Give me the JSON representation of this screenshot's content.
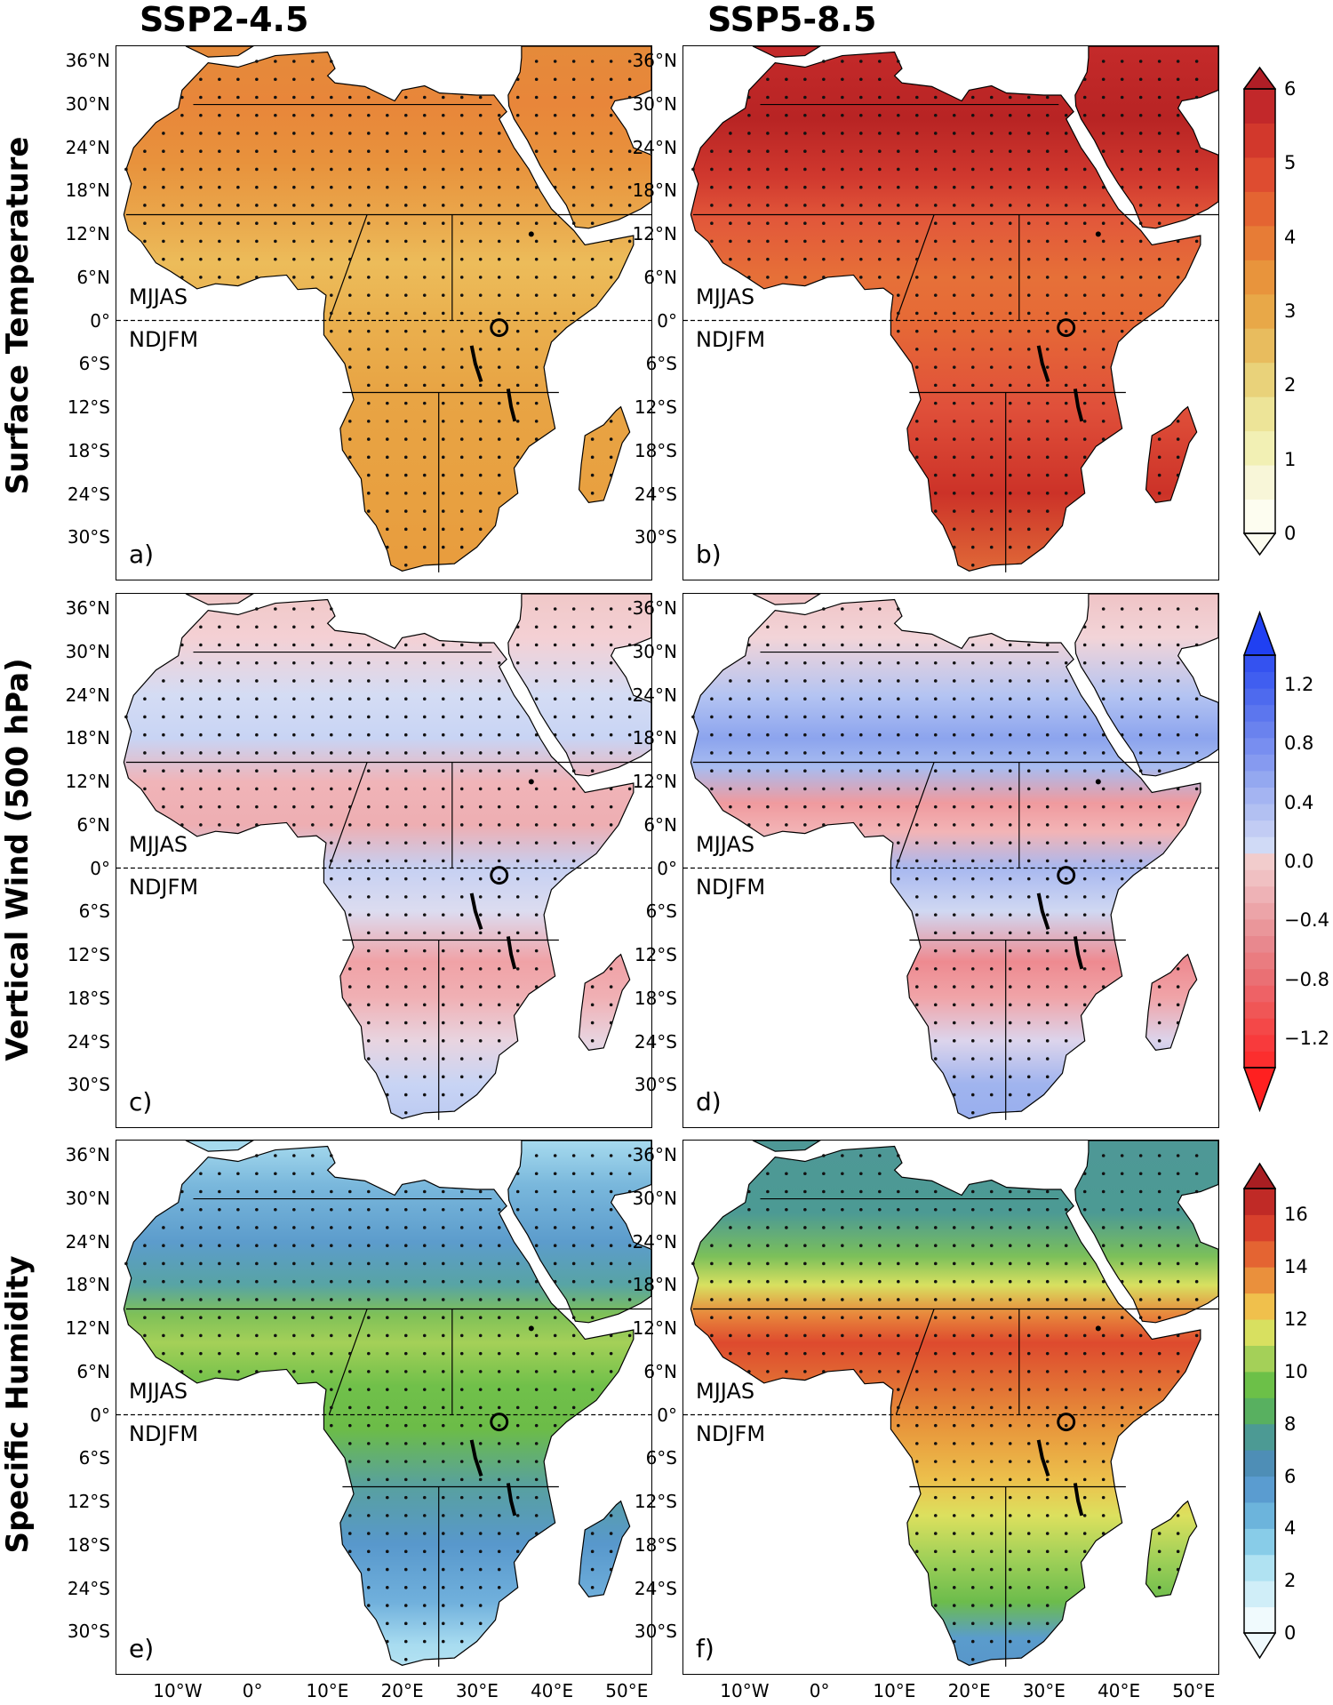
{
  "columns": [
    "SSP2-4.5",
    "SSP5-8.5"
  ],
  "rows": [
    "Surface Temperature",
    "Vertical Wind (500 hPa)",
    "Specific Humidity"
  ],
  "season_labels": {
    "north": "MJJAS",
    "south": "NDJFM"
  },
  "lat_ticks": [
    "36°N",
    "30°N",
    "24°N",
    "18°N",
    "12°N",
    "6°N",
    "0°",
    "6°S",
    "12°S",
    "18°S",
    "24°S",
    "30°S"
  ],
  "lat_values": [
    36,
    30,
    24,
    18,
    12,
    6,
    0,
    -6,
    -12,
    -18,
    -24,
    -30
  ],
  "lon_ticks": [
    "10°W",
    "0°",
    "10°E",
    "20°E",
    "30°E",
    "40°E",
    "50°E"
  ],
  "lon_values": [
    -10,
    0,
    10,
    20,
    30,
    40,
    50
  ],
  "panels": [
    {
      "letter": "a)",
      "row": 0,
      "col": 0,
      "fill_by_lat": [
        [
          38,
          "#e58a3a"
        ],
        [
          30,
          "#e8863a"
        ],
        [
          22,
          "#e8923c"
        ],
        [
          14,
          "#eaa84c"
        ],
        [
          8,
          "#ecbc5a"
        ],
        [
          0,
          "#eab04e"
        ],
        [
          -10,
          "#e8a444"
        ],
        [
          -25,
          "#e8a040"
        ],
        [
          -35,
          "#e89c3e"
        ]
      ]
    },
    {
      "letter": "b)",
      "row": 0,
      "col": 1,
      "fill_by_lat": [
        [
          38,
          "#c42a2a"
        ],
        [
          28,
          "#b82424"
        ],
        [
          20,
          "#d0382e"
        ],
        [
          14,
          "#e2583a"
        ],
        [
          6,
          "#e67038"
        ],
        [
          0,
          "#e66a36"
        ],
        [
          -12,
          "#e0503a"
        ],
        [
          -24,
          "#cc3228"
        ],
        [
          -35,
          "#e06a38"
        ]
      ]
    },
    {
      "letter": "c)",
      "row": 1,
      "col": 0,
      "fill_by_lat": [
        [
          38,
          "#f0c8c8"
        ],
        [
          32,
          "#f4d0d4"
        ],
        [
          24,
          "#d4dcf4"
        ],
        [
          18,
          "#c8d4f4"
        ],
        [
          12,
          "#f0b4b8"
        ],
        [
          6,
          "#eeaeb2"
        ],
        [
          0,
          "#c6d0f2"
        ],
        [
          -6,
          "#dcdcf0"
        ],
        [
          -13,
          "#f0a2a6"
        ],
        [
          -18,
          "#f0b0b4"
        ],
        [
          -24,
          "#e8d4e0"
        ],
        [
          -30,
          "#c8d4f4"
        ],
        [
          -35,
          "#bccaf2"
        ]
      ]
    },
    {
      "letter": "d)",
      "row": 1,
      "col": 1,
      "fill_by_lat": [
        [
          38,
          "#f0c4c6"
        ],
        [
          32,
          "#f2d4d8"
        ],
        [
          24,
          "#b4c4f2"
        ],
        [
          18,
          "#8ca4ee"
        ],
        [
          14,
          "#a8bcf0"
        ],
        [
          9,
          "#f09a9e"
        ],
        [
          5,
          "#f2b4b6"
        ],
        [
          0,
          "#a8b8f0"
        ],
        [
          -6,
          "#d0d8f2"
        ],
        [
          -13,
          "#ee8a90"
        ],
        [
          -18,
          "#f0a4a8"
        ],
        [
          -24,
          "#dcd4ec"
        ],
        [
          -30,
          "#a0b4ee"
        ],
        [
          -35,
          "#98aeee"
        ]
      ]
    },
    {
      "letter": "e)",
      "row": 2,
      "col": 0,
      "fill_by_lat": [
        [
          38,
          "#a6daee"
        ],
        [
          32,
          "#7ab8dc"
        ],
        [
          24,
          "#5c9ccc"
        ],
        [
          18,
          "#58a4a4"
        ],
        [
          14,
          "#7ec058"
        ],
        [
          10,
          "#a4d058"
        ],
        [
          4,
          "#70c04a"
        ],
        [
          -2,
          "#6cbc48"
        ],
        [
          -10,
          "#58a0a0"
        ],
        [
          -18,
          "#5898cc"
        ],
        [
          -26,
          "#70b0dc"
        ],
        [
          -32,
          "#a8dcf0"
        ],
        [
          -35,
          "#b4e2f2"
        ]
      ]
    },
    {
      "letter": "f)",
      "row": 2,
      "col": 1,
      "fill_by_lat": [
        [
          38,
          "#4e9896"
        ],
        [
          28,
          "#4c9a94"
        ],
        [
          22,
          "#7cc05a"
        ],
        [
          18,
          "#d8e060"
        ],
        [
          14,
          "#e8883c"
        ],
        [
          10,
          "#de4a2e"
        ],
        [
          4,
          "#e27034"
        ],
        [
          -2,
          "#e8983c"
        ],
        [
          -9,
          "#ecc04c"
        ],
        [
          -14,
          "#dce05e"
        ],
        [
          -20,
          "#a0d058"
        ],
        [
          -26,
          "#6cbc4c"
        ],
        [
          -31,
          "#5a9ccc"
        ],
        [
          -35,
          "#5896ca"
        ]
      ]
    }
  ],
  "colorbars": [
    {
      "row": 0,
      "min": 0,
      "max": 6,
      "step": 0.5,
      "extend": "max",
      "ticks": [
        "0",
        "1",
        "2",
        "3",
        "4",
        "5",
        "6"
      ],
      "tick_values": [
        0,
        1,
        2,
        3,
        4,
        5,
        6
      ],
      "colors": [
        "#fdfdf0",
        "#f8f6d8",
        "#f2f0b4",
        "#ede498",
        "#e9d27a",
        "#e8bc5e",
        "#e8a848",
        "#e8943c",
        "#e77c36",
        "#e46432",
        "#de4c30",
        "#d2382c",
        "#c2282a",
        "#b01e26"
      ]
    },
    {
      "row": 1,
      "min": -1.4,
      "max": 1.4,
      "step": 0.1,
      "extend": "both",
      "ticks": [
        "1.2",
        "0.8",
        "0.4",
        "0.0",
        "−0.4",
        "−0.8",
        "−1.2"
      ],
      "tick_values": [
        1.2,
        0.8,
        0.4,
        0.0,
        -0.4,
        -0.8,
        -1.2
      ],
      "colors": [
        "#ff2020",
        "#fc2e2e",
        "#f83a3c",
        "#f44848",
        "#f05656",
        "#ee6266",
        "#ea7074",
        "#ea7c80",
        "#e8888e",
        "#ea969a",
        "#ec a4a8",
        "#eeb2b6",
        "#f0c0c2",
        "#f2cccc",
        "#d0daf6",
        "#c2ccf4",
        "#b2c0f2",
        "#a4b4f2",
        "#94a8f0",
        "#869af0",
        "#788ef0",
        "#6a82ee",
        "#5c76ee",
        "#4e6aee",
        "#405ef0",
        "#3452f0",
        "#2a48f0",
        "#2040f2"
      ]
    },
    {
      "row": 2,
      "min": 0,
      "max": 17,
      "step": 1,
      "extend": "max",
      "ticks": [
        "0",
        "2",
        "4",
        "6",
        "8",
        "10",
        "12",
        "14",
        "16"
      ],
      "tick_values": [
        0,
        2,
        4,
        6,
        8,
        10,
        12,
        14,
        16
      ],
      "colors": [
        "#f0fafd",
        "#d0eef8",
        "#b0e2f2",
        "#88cce8",
        "#6cb4dc",
        "#5a9cd0",
        "#4e8eb6",
        "#4c9a94",
        "#58b060",
        "#6cc048",
        "#a4d058",
        "#d8e060",
        "#f0c04c",
        "#ea903c",
        "#e46432",
        "#d8402c",
        "#c02a26",
        "#a81e22"
      ]
    }
  ]
}
